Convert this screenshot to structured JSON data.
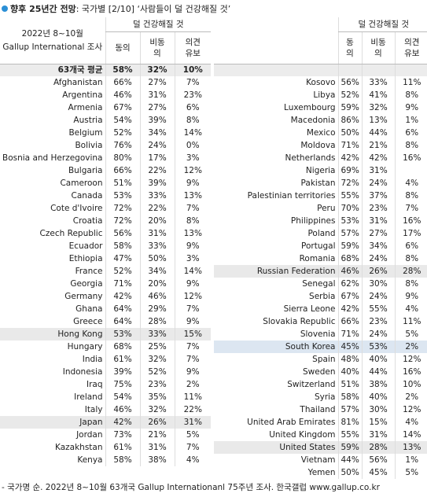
{
  "title": {
    "bold": "향후 25년간 전망",
    "rest": ": 국가별 [2/10] ‘사람들이 덜 건강해질 것’"
  },
  "header": {
    "period": "2022년 8~10월",
    "survey": "Gallup International 조사"
  },
  "average": {
    "label": "63개국 평균",
    "values": [
      "58%",
      "32%",
      "10%"
    ]
  },
  "tables": [
    {
      "group": "덜 건강해질 것",
      "columns": [
        "동의",
        "비동의",
        "의견 유보"
      ],
      "rows": [
        {
          "country": "Afghanistan",
          "values": [
            "66%",
            "27%",
            "7%"
          ]
        },
        {
          "country": "Argentina",
          "values": [
            "46%",
            "31%",
            "23%"
          ]
        },
        {
          "country": "Armenia",
          "values": [
            "67%",
            "27%",
            "6%"
          ]
        },
        {
          "country": "Austria",
          "values": [
            "54%",
            "39%",
            "8%"
          ]
        },
        {
          "country": "Belgium",
          "values": [
            "52%",
            "34%",
            "14%"
          ]
        },
        {
          "country": "Bolivia",
          "values": [
            "76%",
            "24%",
            "0%"
          ]
        },
        {
          "country": "Bosnia and Herzegovina",
          "values": [
            "80%",
            "17%",
            "3%"
          ]
        },
        {
          "country": "Bulgaria",
          "values": [
            "66%",
            "22%",
            "12%"
          ]
        },
        {
          "country": "Cameroon",
          "values": [
            "51%",
            "39%",
            "9%"
          ]
        },
        {
          "country": "Canada",
          "values": [
            "53%",
            "33%",
            "13%"
          ]
        },
        {
          "country": "Cote d'Ivoire",
          "values": [
            "72%",
            "22%",
            "7%"
          ]
        },
        {
          "country": "Croatia",
          "values": [
            "72%",
            "20%",
            "8%"
          ]
        },
        {
          "country": "Czech Republic",
          "values": [
            "56%",
            "31%",
            "13%"
          ]
        },
        {
          "country": "Ecuador",
          "values": [
            "58%",
            "33%",
            "9%"
          ]
        },
        {
          "country": "Ethiopia",
          "values": [
            "47%",
            "50%",
            "3%"
          ]
        },
        {
          "country": "France",
          "values": [
            "52%",
            "34%",
            "14%"
          ]
        },
        {
          "country": "Georgia",
          "values": [
            "71%",
            "20%",
            "9%"
          ]
        },
        {
          "country": "Germany",
          "values": [
            "42%",
            "46%",
            "12%"
          ]
        },
        {
          "country": "Ghana",
          "values": [
            "64%",
            "29%",
            "7%"
          ]
        },
        {
          "country": "Greece",
          "values": [
            "64%",
            "28%",
            "9%"
          ]
        },
        {
          "country": "Hong Kong",
          "values": [
            "53%",
            "33%",
            "15%"
          ],
          "highlight": "gray"
        },
        {
          "country": "Hungary",
          "values": [
            "68%",
            "25%",
            "7%"
          ]
        },
        {
          "country": "India",
          "values": [
            "61%",
            "32%",
            "7%"
          ]
        },
        {
          "country": "Indonesia",
          "values": [
            "39%",
            "52%",
            "9%"
          ]
        },
        {
          "country": "Iraq",
          "values": [
            "75%",
            "23%",
            "2%"
          ]
        },
        {
          "country": "Ireland",
          "values": [
            "54%",
            "35%",
            "11%"
          ]
        },
        {
          "country": "Italy",
          "values": [
            "46%",
            "32%",
            "22%"
          ]
        },
        {
          "country": "Japan",
          "values": [
            "42%",
            "26%",
            "31%"
          ],
          "highlight": "gray"
        },
        {
          "country": "Jordan",
          "values": [
            "73%",
            "21%",
            "5%"
          ]
        },
        {
          "country": "Kazakhstan",
          "values": [
            "61%",
            "31%",
            "7%"
          ]
        },
        {
          "country": "Kenya",
          "values": [
            "58%",
            "38%",
            "4%"
          ]
        }
      ]
    },
    {
      "group": "덜 건강해질 것",
      "columns": [
        "동의",
        "비동의",
        "의견 유보"
      ],
      "rows": [
        {
          "country": "Kosovo",
          "values": [
            "56%",
            "33%",
            "11%"
          ]
        },
        {
          "country": "Libya",
          "values": [
            "52%",
            "41%",
            "8%"
          ]
        },
        {
          "country": "Luxembourg",
          "values": [
            "59%",
            "32%",
            "9%"
          ]
        },
        {
          "country": "Macedonia",
          "values": [
            "86%",
            "13%",
            "1%"
          ]
        },
        {
          "country": "Mexico",
          "values": [
            "50%",
            "44%",
            "6%"
          ]
        },
        {
          "country": "Moldova",
          "values": [
            "71%",
            "21%",
            "8%"
          ]
        },
        {
          "country": "Netherlands",
          "values": [
            "42%",
            "42%",
            "16%"
          ]
        },
        {
          "country": "Nigeria",
          "values": [
            "69%",
            "31%",
            null
          ]
        },
        {
          "country": "Pakistan",
          "values": [
            "72%",
            "24%",
            "4%"
          ]
        },
        {
          "country": "Palestinian territories",
          "values": [
            "55%",
            "37%",
            "8%"
          ]
        },
        {
          "country": "Peru",
          "values": [
            "70%",
            "23%",
            "7%"
          ]
        },
        {
          "country": "Philippines",
          "values": [
            "53%",
            "31%",
            "16%"
          ]
        },
        {
          "country": "Poland",
          "values": [
            "57%",
            "27%",
            "17%"
          ]
        },
        {
          "country": "Portugal",
          "values": [
            "59%",
            "34%",
            "6%"
          ]
        },
        {
          "country": "Romania",
          "values": [
            "68%",
            "24%",
            "8%"
          ]
        },
        {
          "country": "Russian Federation",
          "values": [
            "46%",
            "26%",
            "28%"
          ],
          "highlight": "gray"
        },
        {
          "country": "Senegal",
          "values": [
            "62%",
            "30%",
            "8%"
          ]
        },
        {
          "country": "Serbia",
          "values": [
            "67%",
            "24%",
            "9%"
          ]
        },
        {
          "country": "Sierra Leone",
          "values": [
            "42%",
            "55%",
            "4%"
          ]
        },
        {
          "country": "Slovakia Republic",
          "values": [
            "66%",
            "23%",
            "11%"
          ]
        },
        {
          "country": "Slovenia",
          "values": [
            "71%",
            "24%",
            "5%"
          ]
        },
        {
          "country": "South Korea",
          "values": [
            "45%",
            "53%",
            "2%"
          ],
          "highlight": "blue"
        },
        {
          "country": "Spain",
          "values": [
            "48%",
            "40%",
            "12%"
          ]
        },
        {
          "country": "Sweden",
          "values": [
            "40%",
            "44%",
            "16%"
          ]
        },
        {
          "country": "Switzerland",
          "values": [
            "51%",
            "38%",
            "10%"
          ]
        },
        {
          "country": "Syria",
          "values": [
            "58%",
            "40%",
            "2%"
          ]
        },
        {
          "country": "Thailand",
          "values": [
            "57%",
            "30%",
            "12%"
          ]
        },
        {
          "country": "United Arab Emirates",
          "values": [
            "81%",
            "15%",
            "4%"
          ]
        },
        {
          "country": "United Kingdom",
          "values": [
            "55%",
            "31%",
            "14%"
          ]
        },
        {
          "country": "United States",
          "values": [
            "59%",
            "28%",
            "13%"
          ],
          "highlight": "gray"
        },
        {
          "country": "Vietnam",
          "values": [
            "44%",
            "56%",
            "1%"
          ]
        },
        {
          "country": "Yemen",
          "values": [
            "50%",
            "45%",
            "5%"
          ]
        }
      ]
    }
  ],
  "footer": "- 국가명 순. 2022년 8~10월 63개국 Gallup Internationanl 75주년 조사. 한국갤럽 www.gallup.co.kr"
}
